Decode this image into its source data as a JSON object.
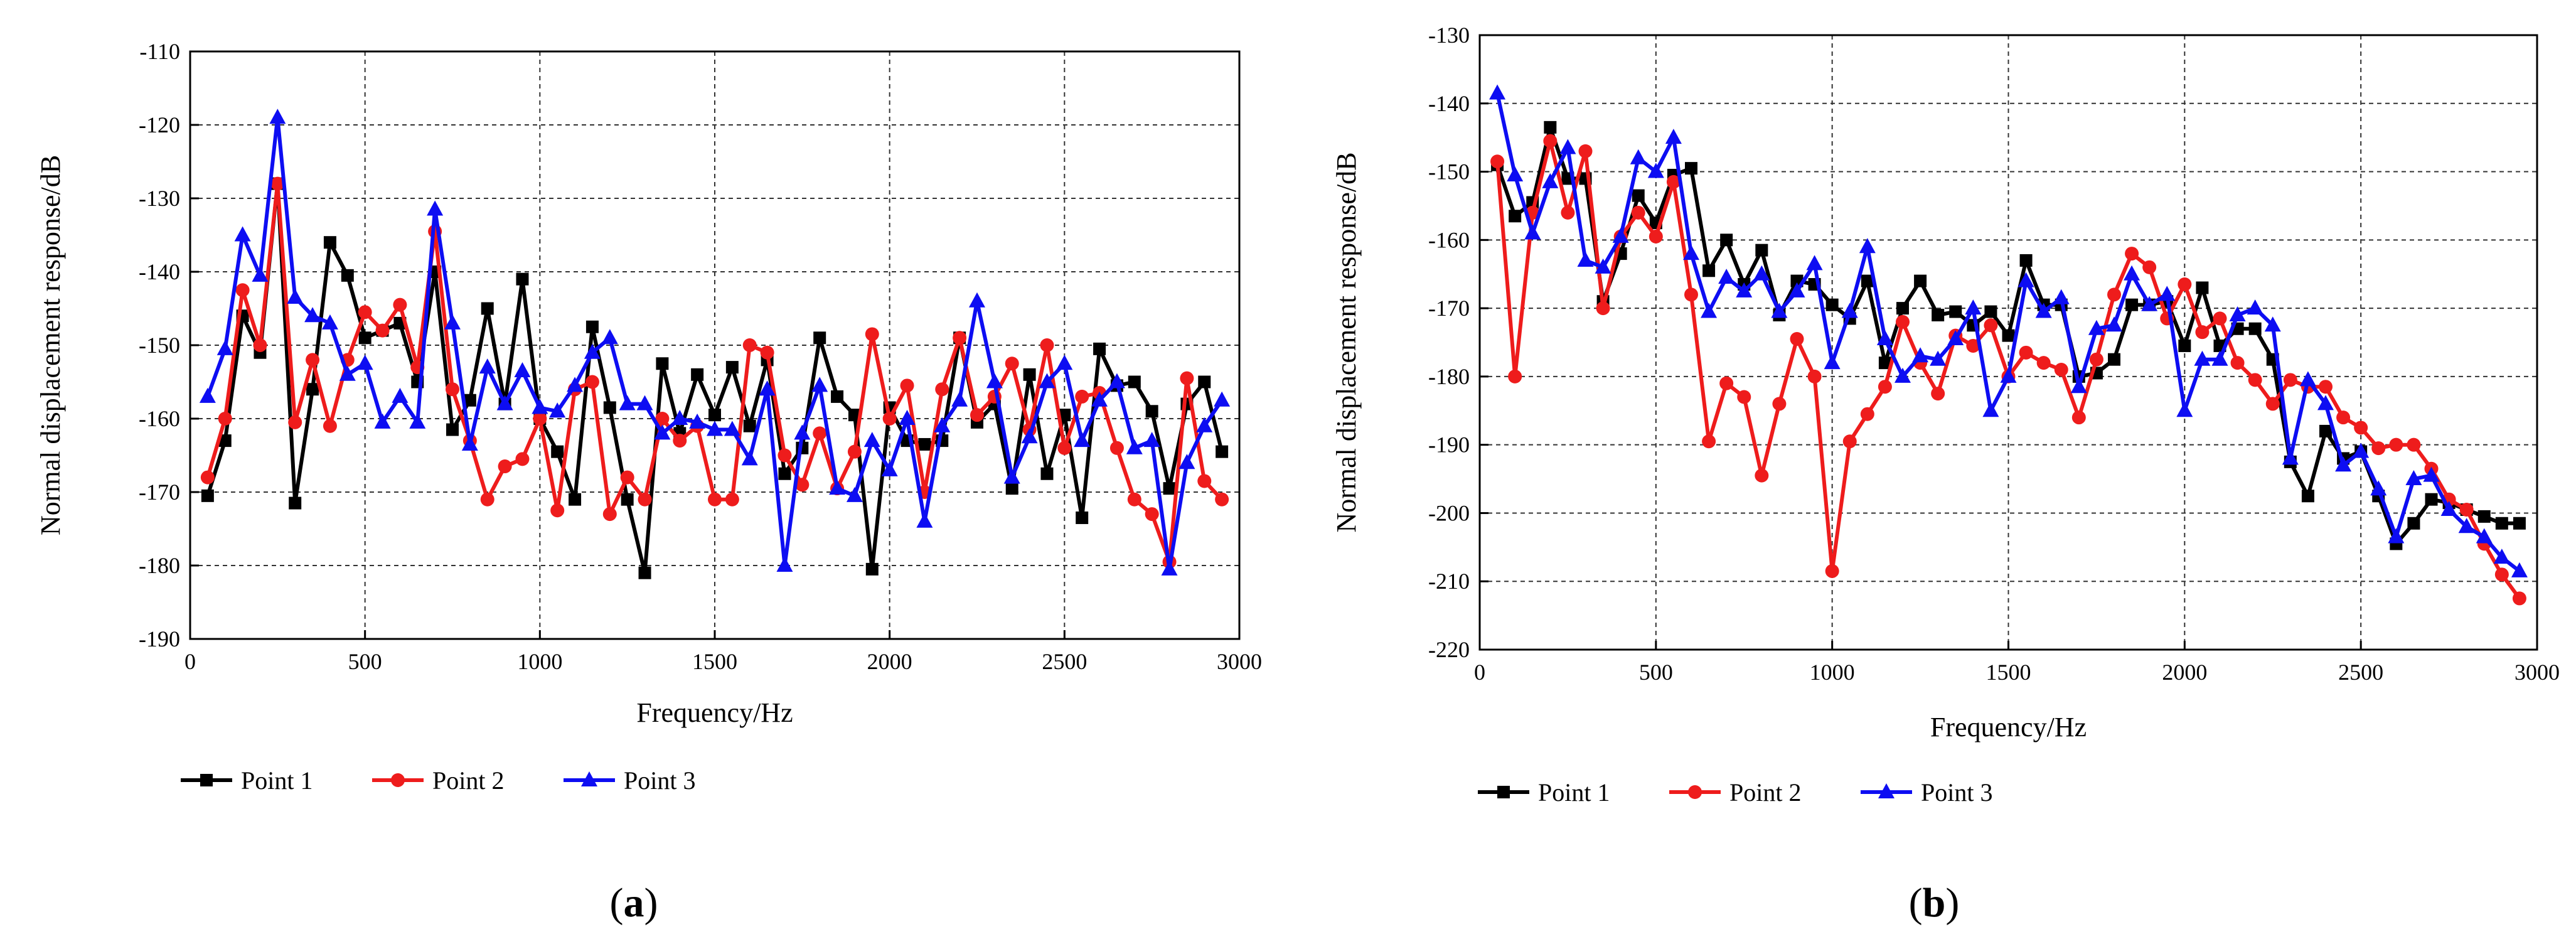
{
  "chart_data": [
    {
      "type": "line",
      "panel_label": "a",
      "xlabel": "Frequency/Hz",
      "ylabel": "Normal displacement response/dB",
      "xlim": [
        0,
        3000
      ],
      "ylim": [
        -190,
        -110
      ],
      "xticks": [
        0,
        500,
        1000,
        1500,
        2000,
        2500,
        3000
      ],
      "yticks": [
        -190,
        -180,
        -170,
        -160,
        -150,
        -140,
        -130,
        -120,
        -110
      ],
      "grid": true,
      "legend_position": "bottom-left",
      "series": [
        {
          "name": "Point 1",
          "color": "#000000",
          "marker": "square",
          "x": [
            50,
            100,
            150,
            200,
            250,
            300,
            350,
            400,
            450,
            500,
            550,
            600,
            650,
            700,
            750,
            800,
            850,
            900,
            950,
            1000,
            1050,
            1100,
            1150,
            1200,
            1250,
            1300,
            1350,
            1400,
            1450,
            1500,
            1550,
            1600,
            1650,
            1700,
            1750,
            1800,
            1850,
            1900,
            1950,
            2000,
            2050,
            2100,
            2150,
            2200,
            2250,
            2300,
            2350,
            2400,
            2450,
            2500,
            2550,
            2600,
            2650,
            2700,
            2750,
            2800,
            2850,
            2900,
            2950
          ],
          "values": [
            -170.5,
            -163,
            -146,
            -151,
            -128,
            -171.5,
            -156,
            -136,
            -140.5,
            -149,
            -148,
            -147,
            -155,
            -140,
            -161.5,
            -157.5,
            -145,
            -158,
            -141,
            -160,
            -164.5,
            -171,
            -147.5,
            -158.5,
            -171,
            -181,
            -152.5,
            -162,
            -154,
            -159.5,
            -153,
            -161,
            -152,
            -167.5,
            -164,
            -149,
            -157,
            -159.5,
            -180.5,
            -158.5,
            -163,
            -163.5,
            -163,
            -149,
            -160.5,
            -158,
            -169.5,
            -154,
            -167.5,
            -159.5,
            -173.5,
            -150.5,
            -155.5,
            -155,
            -159,
            -169.5,
            -158,
            -155,
            -164.5
          ]
        },
        {
          "name": "Point 2",
          "color": "#ee1c1c",
          "marker": "circle",
          "x": [
            50,
            100,
            150,
            200,
            250,
            300,
            350,
            400,
            450,
            500,
            550,
            600,
            650,
            700,
            750,
            800,
            850,
            900,
            950,
            1000,
            1050,
            1100,
            1150,
            1200,
            1250,
            1300,
            1350,
            1400,
            1450,
            1500,
            1550,
            1600,
            1650,
            1700,
            1750,
            1800,
            1850,
            1900,
            1950,
            2000,
            2050,
            2100,
            2150,
            2200,
            2250,
            2300,
            2350,
            2400,
            2450,
            2500,
            2550,
            2600,
            2650,
            2700,
            2750,
            2800,
            2850,
            2900,
            2950
          ],
          "values": [
            -168,
            -160,
            -142.5,
            -150,
            -128,
            -160.5,
            -152,
            -161,
            -152,
            -145.5,
            -148,
            -144.5,
            -153,
            -134.5,
            -156,
            -163,
            -171,
            -166.5,
            -165.5,
            -160,
            -172.5,
            -156,
            -155,
            -173,
            -168,
            -171,
            -160,
            -163,
            -161,
            -171,
            -171,
            -150,
            -151,
            -165,
            -169,
            -162,
            -169.5,
            -164.5,
            -148.5,
            -160,
            -155.5,
            -170,
            -156,
            -149,
            -159.5,
            -157,
            -152.5,
            -161.5,
            -150,
            -164,
            -157,
            -156.5,
            -164,
            -171,
            -173,
            -179.5,
            -154.5,
            -168.5,
            -171
          ]
        },
        {
          "name": "Point 3",
          "color": "#0d0df2",
          "marker": "triangle",
          "x": [
            50,
            100,
            150,
            200,
            250,
            300,
            350,
            400,
            450,
            500,
            550,
            600,
            650,
            700,
            750,
            800,
            850,
            900,
            950,
            1000,
            1050,
            1100,
            1150,
            1200,
            1250,
            1300,
            1350,
            1400,
            1450,
            1500,
            1550,
            1600,
            1650,
            1700,
            1750,
            1800,
            1850,
            1900,
            1950,
            2000,
            2050,
            2100,
            2150,
            2200,
            2250,
            2300,
            2350,
            2400,
            2450,
            2500,
            2550,
            2600,
            2650,
            2700,
            2750,
            2800,
            2850,
            2900,
            2950
          ],
          "values": [
            -157,
            -150.5,
            -135,
            -140.5,
            -119,
            -143.5,
            -146,
            -147,
            -154,
            -152.5,
            -160.5,
            -157,
            -160.5,
            -131.5,
            -147,
            -163.5,
            -153,
            -158,
            -153.5,
            -158.5,
            -159,
            -155.5,
            -151,
            -149,
            -158,
            -158,
            -162,
            -160,
            -160.5,
            -161.5,
            -161.5,
            -165.5,
            -156,
            -180,
            -162,
            -155.5,
            -169.5,
            -170.5,
            -163,
            -167,
            -160,
            -174,
            -161,
            -157.5,
            -144,
            -155,
            -168,
            -162.5,
            -155,
            -152.5,
            -163,
            -157.5,
            -155,
            -164,
            -163,
            -180.5,
            -166,
            -161,
            -157.5
          ]
        }
      ]
    },
    {
      "type": "line",
      "panel_label": "b",
      "xlabel": "Frequency/Hz",
      "ylabel": "Normal displacement response/dB",
      "xlim": [
        0,
        3000
      ],
      "ylim": [
        -220,
        -130
      ],
      "xticks": [
        0,
        500,
        1000,
        1500,
        2000,
        2500,
        3000
      ],
      "yticks": [
        -220,
        -210,
        -200,
        -190,
        -180,
        -170,
        -160,
        -150,
        -140,
        -130
      ],
      "grid": true,
      "legend_position": "bottom-left",
      "series": [
        {
          "name": "Point 1",
          "color": "#000000",
          "marker": "square",
          "x": [
            50,
            100,
            150,
            200,
            250,
            300,
            350,
            400,
            450,
            500,
            550,
            600,
            650,
            700,
            750,
            800,
            850,
            900,
            950,
            1000,
            1050,
            1100,
            1150,
            1200,
            1250,
            1300,
            1350,
            1400,
            1450,
            1500,
            1550,
            1600,
            1650,
            1700,
            1750,
            1800,
            1850,
            1900,
            1950,
            2000,
            2050,
            2100,
            2150,
            2200,
            2250,
            2300,
            2350,
            2400,
            2450,
            2500,
            2550,
            2600,
            2650,
            2700,
            2750,
            2800,
            2850,
            2900,
            2950
          ],
          "values": [
            -149,
            -156.5,
            -154.5,
            -143.5,
            -151,
            -151,
            -169,
            -162,
            -153.5,
            -157.5,
            -150.5,
            -149.5,
            -164.5,
            -160,
            -166.5,
            -161.5,
            -171,
            -166,
            -166.5,
            -169.5,
            -171.5,
            -166,
            -178,
            -170,
            -166,
            -171,
            -170.5,
            -172.5,
            -170.5,
            -174,
            -163,
            -169.5,
            -169.5,
            -180,
            -179.5,
            -177.5,
            -169.5,
            -169.5,
            -169,
            -175.5,
            -167,
            -175.5,
            -173,
            -173,
            -177.5,
            -192.5,
            -197.5,
            -188,
            -192,
            -191,
            -197.5,
            -204.5,
            -201.5,
            -198,
            -198.5,
            -199.5,
            -200.5,
            -201.5,
            -201.5
          ]
        },
        {
          "name": "Point 2",
          "color": "#ee1c1c",
          "marker": "circle",
          "x": [
            50,
            100,
            150,
            200,
            250,
            300,
            350,
            400,
            450,
            500,
            550,
            600,
            650,
            700,
            750,
            800,
            850,
            900,
            950,
            1000,
            1050,
            1100,
            1150,
            1200,
            1250,
            1300,
            1350,
            1400,
            1450,
            1500,
            1550,
            1600,
            1650,
            1700,
            1750,
            1800,
            1850,
            1900,
            1950,
            2000,
            2050,
            2100,
            2150,
            2200,
            2250,
            2300,
            2350,
            2400,
            2450,
            2500,
            2550,
            2600,
            2650,
            2700,
            2750,
            2800,
            2850,
            2900,
            2950
          ],
          "values": [
            -148.5,
            -180,
            -156,
            -145.5,
            -156,
            -147,
            -170,
            -159.5,
            -156,
            -159.5,
            -151.5,
            -168,
            -189.5,
            -181,
            -183,
            -194.5,
            -184,
            -174.5,
            -180,
            -208.5,
            -189.5,
            -185.5,
            -181.5,
            -172,
            -178,
            -182.5,
            -174,
            -175.5,
            -172.5,
            -180,
            -176.5,
            -178,
            -179,
            -186,
            -177.5,
            -168,
            -162,
            -164,
            -171.5,
            -166.5,
            -173.5,
            -171.5,
            -178,
            -180.5,
            -184,
            -180.5,
            -181.5,
            -181.5,
            -186,
            -187.5,
            -190.5,
            -190,
            -190,
            -193.5,
            -198,
            -199.5,
            -204.5,
            -209,
            -212.5
          ]
        },
        {
          "name": "Point 3",
          "color": "#0d0df2",
          "marker": "triangle",
          "x": [
            50,
            100,
            150,
            200,
            250,
            300,
            350,
            400,
            450,
            500,
            550,
            600,
            650,
            700,
            750,
            800,
            850,
            900,
            950,
            1000,
            1050,
            1100,
            1150,
            1200,
            1250,
            1300,
            1350,
            1400,
            1450,
            1500,
            1550,
            1600,
            1650,
            1700,
            1750,
            1800,
            1850,
            1900,
            1950,
            2000,
            2050,
            2100,
            2150,
            2200,
            2250,
            2300,
            2350,
            2400,
            2450,
            2500,
            2550,
            2600,
            2650,
            2700,
            2750,
            2800,
            2850,
            2900,
            2950
          ],
          "values": [
            -138.5,
            -150.5,
            -159,
            -151.5,
            -146.5,
            -163,
            -164,
            -159.5,
            -148,
            -150,
            -145,
            -162,
            -170.5,
            -165.5,
            -167.5,
            -165,
            -170.5,
            -167.5,
            -163.5,
            -178,
            -170.5,
            -161,
            -174.5,
            -180,
            -177,
            -177.5,
            -174.5,
            -170,
            -185,
            -180,
            -166,
            -170.5,
            -168.5,
            -181.5,
            -173,
            -172.5,
            -165,
            -169.5,
            -168,
            -185,
            -177.5,
            -177.5,
            -171,
            -170,
            -172.5,
            -192,
            -180.5,
            -184,
            -193,
            -191,
            -196.5,
            -203.5,
            -195,
            -194.5,
            -199.5,
            -202,
            -203.5,
            -206.5,
            -208.5
          ]
        }
      ]
    }
  ]
}
